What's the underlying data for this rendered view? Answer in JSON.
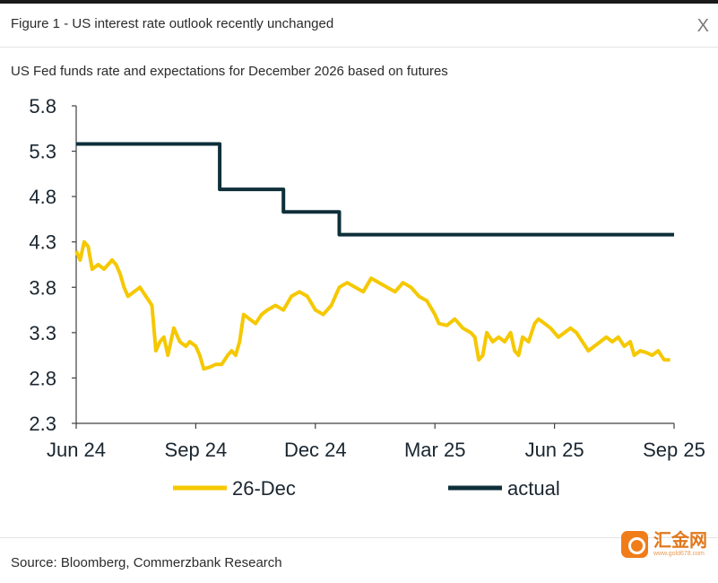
{
  "header": {
    "figure_title": "Figure 1 - US interest rate outlook recently unchanged",
    "close_label": "X"
  },
  "subtitle": "US Fed funds rate and expectations for December 2026 based on futures",
  "footer": {
    "source": "Source: Bloomberg, Commerzbank Research",
    "logo_text": "汇金网",
    "logo_url": "www.gold678.com"
  },
  "colors": {
    "series_26dec": "#f5c800",
    "series_actual": "#0e2f3a",
    "axis": "#404040"
  },
  "chart_data": {
    "type": "line",
    "title": "",
    "xlabel": "",
    "ylabel": "",
    "ylim": [
      2.3,
      5.8
    ],
    "yticks": [
      5.8,
      5.3,
      4.8,
      4.3,
      3.8,
      3.3,
      2.8,
      2.3
    ],
    "ytick_labels": [
      "5.8",
      "5.3",
      "4.8",
      "4.3",
      "3.8",
      "3.3",
      "2.8",
      "2.3"
    ],
    "xlim": [
      0,
      15
    ],
    "xticks": [
      {
        "label": "Jun 24",
        "x": 0
      },
      {
        "label": "Sep 24",
        "x": 3
      },
      {
        "label": "Dec 24",
        "x": 6
      },
      {
        "label": "Mar 25",
        "x": 9
      },
      {
        "label": "Jun 25",
        "x": 12
      },
      {
        "label": "Sep 25",
        "x": 15
      }
    ],
    "grid": false,
    "legend_position": "bottom",
    "series": [
      {
        "name": "26-Dec",
        "key": "series_26dec",
        "points": [
          [
            0.0,
            4.2
          ],
          [
            0.1,
            4.1
          ],
          [
            0.2,
            4.3
          ],
          [
            0.3,
            4.25
          ],
          [
            0.4,
            4.0
          ],
          [
            0.55,
            4.05
          ],
          [
            0.7,
            4.0
          ],
          [
            0.8,
            4.05
          ],
          [
            0.9,
            4.1
          ],
          [
            1.0,
            4.05
          ],
          [
            1.1,
            3.95
          ],
          [
            1.2,
            3.8
          ],
          [
            1.3,
            3.7
          ],
          [
            1.45,
            3.75
          ],
          [
            1.6,
            3.8
          ],
          [
            1.75,
            3.7
          ],
          [
            1.9,
            3.6
          ],
          [
            2.0,
            3.1
          ],
          [
            2.1,
            3.2
          ],
          [
            2.2,
            3.25
          ],
          [
            2.3,
            3.05
          ],
          [
            2.45,
            3.35
          ],
          [
            2.6,
            3.2
          ],
          [
            2.75,
            3.15
          ],
          [
            2.85,
            3.2
          ],
          [
            3.0,
            3.15
          ],
          [
            3.1,
            3.05
          ],
          [
            3.2,
            2.9
          ],
          [
            3.35,
            2.92
          ],
          [
            3.5,
            2.95
          ],
          [
            3.65,
            2.95
          ],
          [
            3.8,
            3.05
          ],
          [
            3.9,
            3.1
          ],
          [
            4.0,
            3.05
          ],
          [
            4.1,
            3.2
          ],
          [
            4.2,
            3.5
          ],
          [
            4.35,
            3.45
          ],
          [
            4.5,
            3.4
          ],
          [
            4.65,
            3.5
          ],
          [
            4.8,
            3.55
          ],
          [
            5.0,
            3.6
          ],
          [
            5.2,
            3.55
          ],
          [
            5.4,
            3.7
          ],
          [
            5.6,
            3.75
          ],
          [
            5.8,
            3.7
          ],
          [
            6.0,
            3.55
          ],
          [
            6.2,
            3.5
          ],
          [
            6.4,
            3.6
          ],
          [
            6.6,
            3.8
          ],
          [
            6.8,
            3.85
          ],
          [
            7.0,
            3.8
          ],
          [
            7.2,
            3.75
          ],
          [
            7.4,
            3.9
          ],
          [
            7.6,
            3.85
          ],
          [
            7.8,
            3.8
          ],
          [
            8.0,
            3.75
          ],
          [
            8.2,
            3.85
          ],
          [
            8.4,
            3.8
          ],
          [
            8.6,
            3.7
          ],
          [
            8.8,
            3.65
          ],
          [
            9.0,
            3.5
          ],
          [
            9.1,
            3.4
          ],
          [
            9.3,
            3.38
          ],
          [
            9.5,
            3.45
          ],
          [
            9.7,
            3.35
          ],
          [
            9.9,
            3.3
          ],
          [
            10.0,
            3.25
          ],
          [
            10.1,
            3.0
          ],
          [
            10.2,
            3.05
          ],
          [
            10.3,
            3.3
          ],
          [
            10.45,
            3.2
          ],
          [
            10.6,
            3.25
          ],
          [
            10.75,
            3.2
          ],
          [
            10.9,
            3.3
          ],
          [
            11.0,
            3.1
          ],
          [
            11.1,
            3.05
          ],
          [
            11.2,
            3.25
          ],
          [
            11.35,
            3.2
          ],
          [
            11.5,
            3.4
          ],
          [
            11.6,
            3.45
          ],
          [
            11.75,
            3.4
          ],
          [
            11.9,
            3.35
          ],
          [
            12.0,
            3.3
          ],
          [
            12.1,
            3.25
          ],
          [
            12.25,
            3.3
          ],
          [
            12.4,
            3.35
          ],
          [
            12.55,
            3.3
          ],
          [
            12.7,
            3.2
          ],
          [
            12.85,
            3.1
          ],
          [
            13.0,
            3.15
          ],
          [
            13.15,
            3.2
          ],
          [
            13.3,
            3.25
          ],
          [
            13.45,
            3.2
          ],
          [
            13.6,
            3.25
          ],
          [
            13.75,
            3.15
          ],
          [
            13.9,
            3.2
          ],
          [
            14.0,
            3.05
          ],
          [
            14.15,
            3.1
          ],
          [
            14.3,
            3.08
          ],
          [
            14.45,
            3.05
          ],
          [
            14.6,
            3.1
          ],
          [
            14.75,
            3.0
          ],
          [
            14.9,
            3.0
          ]
        ]
      },
      {
        "name": "actual",
        "key": "series_actual",
        "points": [
          [
            0.0,
            5.38
          ],
          [
            3.6,
            5.38
          ],
          [
            3.6,
            4.88
          ],
          [
            5.2,
            4.88
          ],
          [
            5.2,
            4.63
          ],
          [
            6.6,
            4.63
          ],
          [
            6.6,
            4.38
          ],
          [
            15.0,
            4.38
          ]
        ]
      }
    ]
  }
}
